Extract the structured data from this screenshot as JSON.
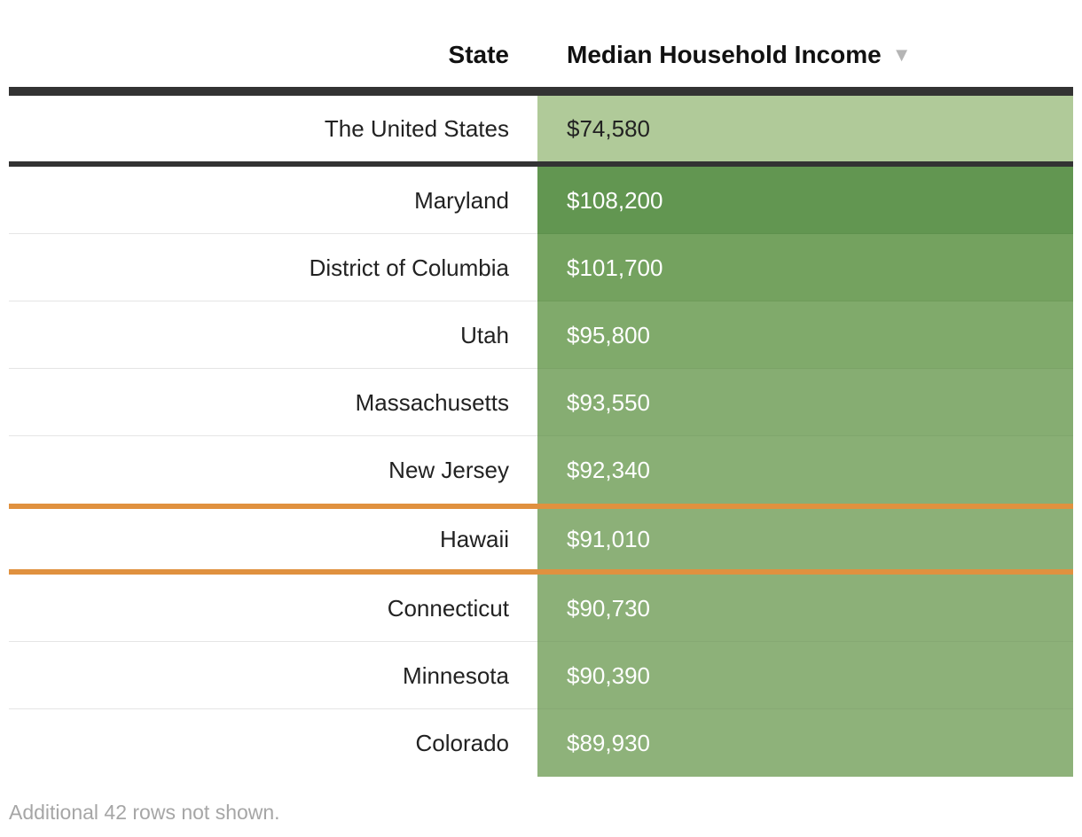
{
  "chart_data": {
    "type": "table",
    "columns": [
      "State",
      "Median Household Income"
    ],
    "sort_indicator": "descending",
    "summary_row": {
      "state": "The United States",
      "income_label": "$74,580",
      "value": 74580
    },
    "rows": [
      {
        "state": "Maryland",
        "income_label": "$108,200",
        "value": 108200,
        "color": "#629651"
      },
      {
        "state": "District of Columbia",
        "income_label": "$101,700",
        "value": 101700,
        "color": "#74a25f"
      },
      {
        "state": "Utah",
        "income_label": "$95,800",
        "value": 95800,
        "color": "#80aa6b"
      },
      {
        "state": "Massachusetts",
        "income_label": "$93,550",
        "value": 93550,
        "color": "#86ad72"
      },
      {
        "state": "New Jersey",
        "income_label": "$92,340",
        "value": 92340,
        "color": "#89af75"
      },
      {
        "state": "Hawaii",
        "income_label": "$91,010",
        "value": 91010,
        "color": "#8cb078",
        "highlighted": true
      },
      {
        "state": "Connecticut",
        "income_label": "$90,730",
        "value": 90730,
        "color": "#8cb078"
      },
      {
        "state": "Minnesota",
        "income_label": "$90,390",
        "value": 90390,
        "color": "#8db179"
      },
      {
        "state": "Colorado",
        "income_label": "$89,930",
        "value": 89930,
        "color": "#8eb27a"
      }
    ],
    "footnote": "Additional 42 rows not shown."
  },
  "colors": {
    "summary_fill": "#b0ca99",
    "header_rule": "#333333",
    "highlight_rule": "#e0913f",
    "row_rule": "#e5e5e5"
  },
  "icons": {
    "sort": "sort-descending-triangle-icon"
  }
}
